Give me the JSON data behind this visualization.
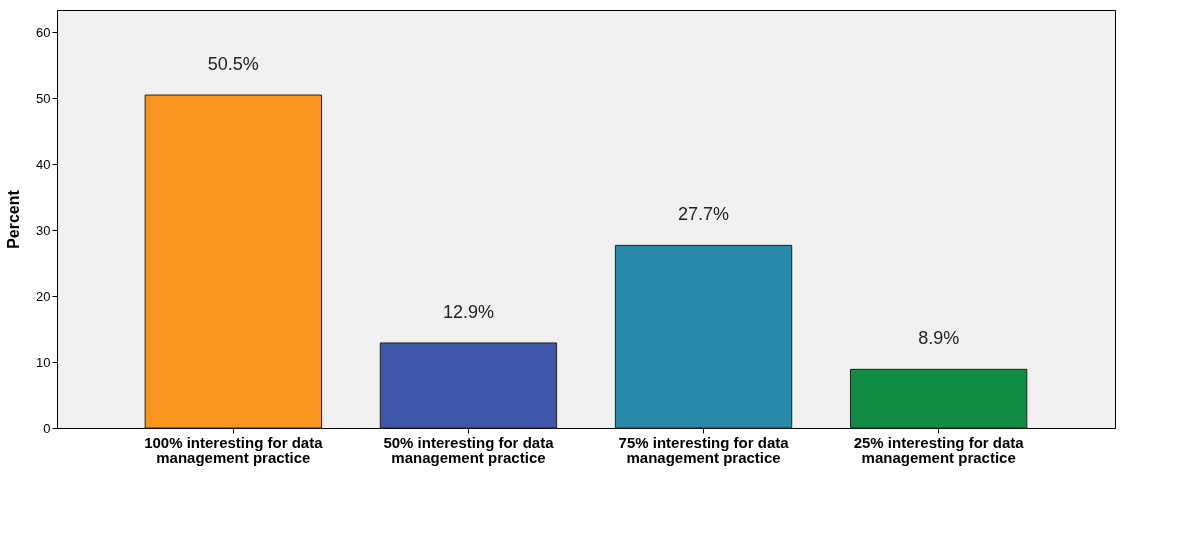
{
  "chart_data": {
    "type": "bar",
    "ylabel": "Percent",
    "categories": [
      "100% interesting for data management practice",
      "50% interesting for data management practice",
      "75% interesting for data management practice",
      "25% interesting for data management practice"
    ],
    "values": [
      50.5,
      12.9,
      27.7,
      8.9
    ],
    "colors": [
      "#f7951e",
      "#3f56a8",
      "#2a8aac",
      "#118c45"
    ],
    "value_labels": [
      "50.5%",
      "12.9%",
      "27.7%",
      "8.9%"
    ],
    "ylim": [
      0,
      63.4
    ],
    "yticks": [
      0,
      10,
      20,
      30,
      40,
      50,
      60
    ],
    "grid": false
  }
}
